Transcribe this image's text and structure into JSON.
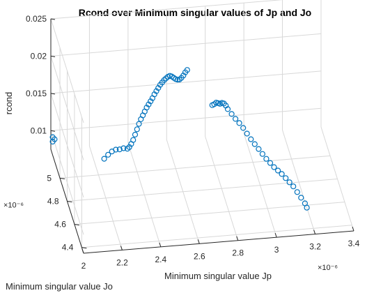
{
  "chart_data": {
    "type": "scatter",
    "title": "Rcond over Minimum singular values of Jp and Jo",
    "xlabel": "Minimum singular value Jp",
    "ylabel": "Minimum singular value Jo",
    "zlabel": "rcond",
    "x_exponent": "×10⁻⁶",
    "y_exponent": "×10⁻⁶",
    "xlim": [
      2e-06,
      3.4e-06
    ],
    "ylim": [
      4.35e-06,
      5.25e-06
    ],
    "zlim": [
      0.0075,
      0.025
    ],
    "xticks": [
      {
        "v": 2e-06,
        "label": "2"
      },
      {
        "v": 2.2e-06,
        "label": "2.2"
      },
      {
        "v": 2.4e-06,
        "label": "2.4"
      },
      {
        "v": 2.6e-06,
        "label": "2.6"
      },
      {
        "v": 2.8e-06,
        "label": "2.8"
      },
      {
        "v": 3e-06,
        "label": "3"
      },
      {
        "v": 3.2e-06,
        "label": "3.2"
      },
      {
        "v": 3.4e-06,
        "label": "3.4"
      }
    ],
    "yticks": [
      {
        "v": 4.4e-06,
        "label": "4.4"
      },
      {
        "v": 4.6e-06,
        "label": "4.6"
      },
      {
        "v": 4.8e-06,
        "label": "4.8"
      },
      {
        "v": 5e-06,
        "label": "5"
      }
    ],
    "zticks": [
      {
        "v": 0.01,
        "label": "0.01"
      },
      {
        "v": 0.015,
        "label": "0.015"
      },
      {
        "v": 0.02,
        "label": "0.02"
      },
      {
        "v": 0.025,
        "label": "0.025"
      }
    ],
    "grid": true,
    "marker": "circle",
    "color": "#0072BD",
    "series": [
      {
        "points": [
          [
            2e-06,
            5.2e-06,
            0.0099
          ],
          [
            2e-06,
            5.2e-06,
            0.0093
          ],
          [
            2.01e-06,
            5.2e-06,
            0.0096
          ],
          [
            2.22e-06,
            4.95e-06,
            0.0104
          ],
          [
            2.24e-06,
            4.95e-06,
            0.0109
          ],
          [
            2.26e-06,
            4.95e-06,
            0.0113
          ],
          [
            2.28e-06,
            4.95e-06,
            0.0115
          ],
          [
            2.3e-06,
            4.95e-06,
            0.0115
          ],
          [
            2.32e-06,
            4.95e-06,
            0.0116
          ],
          [
            2.34e-06,
            4.95e-06,
            0.0115
          ],
          [
            2.35e-06,
            4.95e-06,
            0.0117
          ],
          [
            2.36e-06,
            4.95e-06,
            0.0121
          ],
          [
            2.37e-06,
            4.95e-06,
            0.0126
          ],
          [
            2.38e-06,
            4.95e-06,
            0.0133
          ],
          [
            2.39e-06,
            4.95e-06,
            0.014
          ],
          [
            2.4e-06,
            4.95e-06,
            0.0147
          ],
          [
            2.41e-06,
            4.95e-06,
            0.0153
          ],
          [
            2.42e-06,
            4.95e-06,
            0.0158
          ],
          [
            2.43e-06,
            4.95e-06,
            0.0163
          ],
          [
            2.44e-06,
            4.95e-06,
            0.0168
          ],
          [
            2.45e-06,
            4.95e-06,
            0.0172
          ],
          [
            2.46e-06,
            4.95e-06,
            0.0176
          ],
          [
            2.47e-06,
            4.95e-06,
            0.018
          ],
          [
            2.48e-06,
            4.95e-06,
            0.0185
          ],
          [
            2.49e-06,
            4.95e-06,
            0.0189
          ],
          [
            2.5e-06,
            4.95e-06,
            0.0193
          ],
          [
            2.51e-06,
            4.95e-06,
            0.0197
          ],
          [
            2.52e-06,
            4.95e-06,
            0.02
          ],
          [
            2.53e-06,
            4.95e-06,
            0.0203
          ],
          [
            2.54e-06,
            4.95e-06,
            0.0205
          ],
          [
            2.55e-06,
            4.95e-06,
            0.0207
          ],
          [
            2.56e-06,
            4.95e-06,
            0.0208
          ],
          [
            2.57e-06,
            4.95e-06,
            0.0207
          ],
          [
            2.58e-06,
            4.95e-06,
            0.0205
          ],
          [
            2.59e-06,
            4.95e-06,
            0.0203
          ],
          [
            2.6e-06,
            4.95e-06,
            0.0202
          ],
          [
            2.61e-06,
            4.95e-06,
            0.0202
          ],
          [
            2.62e-06,
            4.95e-06,
            0.0204
          ],
          [
            2.63e-06,
            4.95e-06,
            0.0207
          ],
          [
            2.64e-06,
            4.95e-06,
            0.0211
          ],
          [
            2.65e-06,
            4.95e-06,
            0.0214
          ],
          [
            2.78e-06,
            4.95e-06,
            0.0164
          ],
          [
            2.79e-06,
            4.95e-06,
            0.0165
          ],
          [
            2.8e-06,
            4.95e-06,
            0.0167
          ],
          [
            2.81e-06,
            4.95e-06,
            0.0166
          ],
          [
            2.82e-06,
            4.95e-06,
            0.0165
          ],
          [
            2.83e-06,
            4.95e-06,
            0.0166
          ],
          [
            2.84e-06,
            4.95e-06,
            0.0165
          ],
          [
            2.85e-06,
            4.95e-06,
            0.0162
          ],
          [
            2.86e-06,
            4.95e-06,
            0.0157
          ],
          [
            2.88e-06,
            4.95e-06,
            0.015
          ],
          [
            2.9e-06,
            4.95e-06,
            0.0143
          ],
          [
            2.92e-06,
            4.95e-06,
            0.0137
          ],
          [
            2.94e-06,
            4.95e-06,
            0.013
          ],
          [
            2.96e-06,
            4.95e-06,
            0.0122
          ],
          [
            2.98e-06,
            4.95e-06,
            0.0114
          ],
          [
            3e-06,
            4.95e-06,
            0.0107
          ],
          [
            3.02e-06,
            4.95e-06,
            0.01
          ],
          [
            3.04e-06,
            4.95e-06,
            0.0093
          ],
          [
            3.06e-06,
            4.95e-06,
            0.0086
          ],
          [
            3.08e-06,
            4.95e-06,
            0.008
          ],
          [
            3.1e-06,
            4.95e-06,
            0.0074
          ],
          [
            3.12e-06,
            4.95e-06,
            0.0069
          ],
          [
            3.14e-06,
            4.95e-06,
            0.0064
          ],
          [
            3.16e-06,
            4.95e-06,
            0.0058
          ],
          [
            3.18e-06,
            4.95e-06,
            0.0052
          ],
          [
            3.2e-06,
            4.95e-06,
            0.0046
          ],
          [
            3.22e-06,
            4.95e-06,
            0.0038
          ],
          [
            3.24e-06,
            4.95e-06,
            0.003
          ],
          [
            3.26e-06,
            4.95e-06,
            0.0022
          ],
          [
            3.27e-06,
            4.95e-06,
            0.0016
          ]
        ]
      }
    ]
  }
}
